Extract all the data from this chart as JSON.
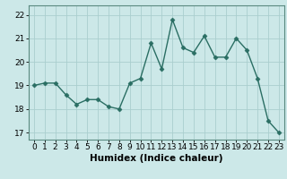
{
  "x": [
    0,
    1,
    2,
    3,
    4,
    5,
    6,
    7,
    8,
    9,
    10,
    11,
    12,
    13,
    14,
    15,
    16,
    17,
    18,
    19,
    20,
    21,
    22,
    23
  ],
  "y": [
    19.0,
    19.1,
    19.1,
    18.6,
    18.2,
    18.4,
    18.4,
    18.1,
    18.0,
    19.1,
    19.3,
    20.8,
    19.7,
    21.8,
    20.6,
    20.4,
    21.1,
    20.2,
    20.2,
    21.0,
    20.5,
    19.3,
    17.5,
    17.0
  ],
  "line_color": "#2a6e63",
  "marker": "D",
  "markersize": 2.5,
  "linewidth": 1.0,
  "xlabel": "Humidex (Indice chaleur)",
  "xlim": [
    -0.5,
    23.5
  ],
  "ylim": [
    16.7,
    22.4
  ],
  "yticks": [
    17,
    18,
    19,
    20,
    21,
    22
  ],
  "xticks": [
    0,
    1,
    2,
    3,
    4,
    5,
    6,
    7,
    8,
    9,
    10,
    11,
    12,
    13,
    14,
    15,
    16,
    17,
    18,
    19,
    20,
    21,
    22,
    23
  ],
  "background_color": "#cce8e8",
  "grid_color": "#aacece",
  "tick_fontsize": 6.5,
  "xlabel_fontsize": 7.5
}
